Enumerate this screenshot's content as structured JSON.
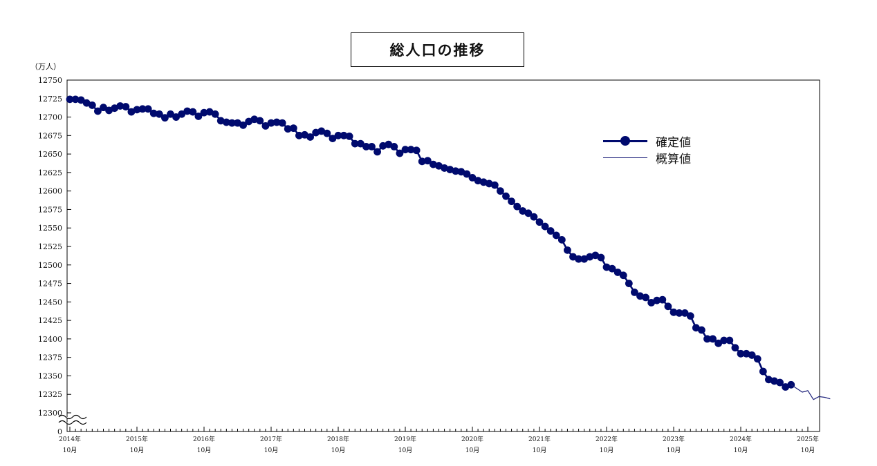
{
  "chart_data": {
    "type": "line",
    "title": "総人口の推移",
    "unit_label": "（万人）",
    "ylim": [
      12300,
      12750
    ],
    "y_ticks": [
      12750,
      12725,
      12700,
      12675,
      12650,
      12625,
      12600,
      12575,
      12550,
      12525,
      12500,
      12475,
      12450,
      12425,
      12400,
      12375,
      12350,
      12325,
      12300
    ],
    "y_zero_label": "0",
    "axis_break": true,
    "x_ticks": [
      {
        "year": "2014年",
        "month": "10月"
      },
      {
        "year": "2015年",
        "month": "10月"
      },
      {
        "year": "2016年",
        "month": "10月"
      },
      {
        "year": "2017年",
        "month": "10月"
      },
      {
        "year": "2018年",
        "month": "10月"
      },
      {
        "year": "2019年",
        "month": "10月"
      },
      {
        "year": "2020年",
        "month": "10月"
      },
      {
        "year": "2021年",
        "month": "10月"
      },
      {
        "year": "2022年",
        "month": "10月"
      },
      {
        "year": "2023年",
        "month": "10月"
      },
      {
        "year": "2024年",
        "month": "10月"
      },
      {
        "year": "2025年",
        "month": "10月"
      }
    ],
    "grid": false,
    "legend_position": "top-right",
    "series": [
      {
        "name": "確定値",
        "style": "thick line with circle markers",
        "color": "#000a6e",
        "values": [
          12724,
          12724,
          12723,
          12719,
          12716,
          12708,
          12713,
          12709,
          12712,
          12715,
          12714,
          12707,
          12710,
          12711,
          12711,
          12705,
          12704,
          12699,
          12704,
          12700,
          12704,
          12708,
          12707,
          12701,
          12706,
          12707,
          12704,
          12695,
          12693,
          12692,
          12692,
          12689,
          12694,
          12697,
          12695,
          12688,
          12692,
          12693,
          12692,
          12684,
          12685,
          12675,
          12676,
          12673,
          12679,
          12681,
          12678,
          12671,
          12675,
          12675,
          12674,
          12664,
          12664,
          12660,
          12660,
          12653,
          12661,
          12663,
          12660,
          12651,
          12656,
          12656,
          12655,
          12640,
          12641,
          12636,
          12634,
          12631,
          12629,
          12627,
          12626,
          12623,
          12618,
          12614,
          12612,
          12610,
          12608,
          12600,
          12593,
          12586,
          12579,
          12573,
          12570,
          12565,
          12558,
          12552,
          12546,
          12540,
          12534,
          12520,
          12511,
          12508,
          12508,
          12511,
          12513,
          12510,
          12497,
          12495,
          12490,
          12486,
          12475,
          12463,
          12458,
          12456,
          12449,
          12452,
          12453,
          12444,
          12436,
          12435,
          12435,
          12431,
          12415,
          12412,
          12400,
          12400,
          12394,
          12398,
          12398,
          12388,
          12380,
          12380,
          12378,
          12373,
          12356,
          12345,
          12343,
          12341,
          12335,
          12338
        ]
      },
      {
        "name": "概算値",
        "style": "thin line",
        "color": "#1a1e78",
        "start_index": 129,
        "values": [
          12338,
          12333,
          12328,
          12330,
          12318,
          12322,
          12321,
          12319
        ]
      }
    ]
  }
}
